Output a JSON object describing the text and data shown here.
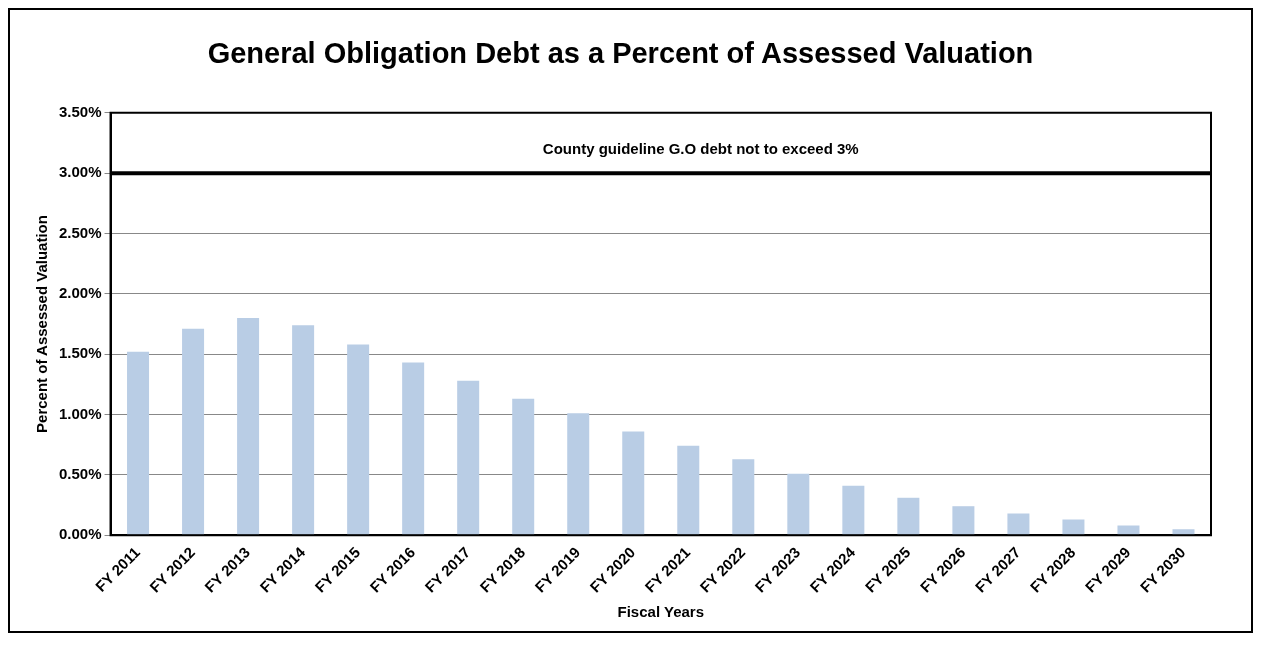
{
  "chart_data": {
    "type": "bar",
    "title": "General Obligation Debt as a Percent of Assessed Valuation",
    "xlabel": "Fiscal Years",
    "ylabel": "Percent of Assessed Valuation",
    "categories": [
      "FY 2011",
      "FY 2012",
      "FY 2013",
      "FY 2014",
      "FY 2015",
      "FY 2016",
      "FY 2017",
      "FY 2018",
      "FY 2019",
      "FY 2020",
      "FY 2021",
      "FY 2022",
      "FY 2023",
      "FY 2024",
      "FY 2025",
      "FY 2026",
      "FY 2027",
      "FY 2028",
      "FY 2029",
      "FY 2030"
    ],
    "values": [
      1.52,
      1.71,
      1.8,
      1.74,
      1.58,
      1.43,
      1.28,
      1.13,
      1.01,
      0.86,
      0.74,
      0.63,
      0.51,
      0.41,
      0.31,
      0.24,
      0.18,
      0.13,
      0.08,
      0.05
    ],
    "color": "#b9cde5",
    "ylim": [
      0,
      3.5
    ],
    "yticks": [
      {
        "value": 0,
        "label": "0.00%"
      },
      {
        "value": 0.5,
        "label": "0.50%"
      },
      {
        "value": 1,
        "label": "1.00%"
      },
      {
        "value": 1.5,
        "label": "1.50%"
      },
      {
        "value": 2,
        "label": "2.00%"
      },
      {
        "value": 2.5,
        "label": "2.50%"
      },
      {
        "value": 3,
        "label": "3.00%"
      },
      {
        "value": 3.5,
        "label": "3.50%"
      }
    ],
    "ref_lines": [
      {
        "axis": "y",
        "value": 3,
        "label": "County guideline G.O debt not to exceed 3%",
        "color": "#000000"
      }
    ],
    "grid": "y",
    "legend": false
  }
}
